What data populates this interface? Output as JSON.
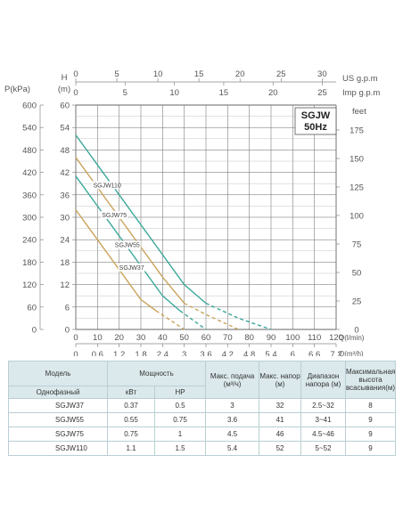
{
  "chart_data": {
    "type": "line",
    "model_label": "SGJW",
    "freq_label": "50Hz",
    "axes": {
      "left_kpa": {
        "label": "P(kPa)",
        "ticks": [
          "600",
          "540",
          "480",
          "420",
          "360",
          "300",
          "240",
          "180",
          "120",
          "60",
          "0"
        ]
      },
      "left_m": {
        "label_h": "H",
        "label_m": "(m)",
        "ticks": [
          "60",
          "54",
          "48",
          "42",
          "36",
          "30",
          "24",
          "18",
          "12",
          "6",
          "0"
        ]
      },
      "right_feet": {
        "label": "feet",
        "ticks": [
          "175",
          "150",
          "125",
          "100",
          "75",
          "50",
          "25",
          "0"
        ]
      },
      "top_us": {
        "label": "US g.p.m",
        "ticks": [
          "0",
          "5",
          "10",
          "15",
          "20",
          "25",
          "30"
        ]
      },
      "top_imp": {
        "label": "Imp g.p.m",
        "ticks": [
          "0",
          "5",
          "10",
          "15",
          "20",
          "25"
        ]
      },
      "bottom_lmin": {
        "label": "Q(l/min)",
        "ticks": [
          "0",
          "10",
          "20",
          "30",
          "40",
          "50",
          "60",
          "70",
          "80",
          "90",
          "100",
          "110",
          "120"
        ]
      },
      "bottom_m3h": {
        "label": "Q(m³/h)",
        "ticks": [
          "0",
          "0.6",
          "1.2",
          "1.8",
          "2.4",
          "3",
          "3.6",
          "4.2",
          "4.8",
          "5.4",
          "6",
          "6.6",
          "7.2"
        ]
      }
    },
    "xlim": [
      0,
      120
    ],
    "ylim": [
      0,
      60
    ],
    "series": [
      {
        "name": "SGJW110",
        "color": "#3aa89a",
        "points": [
          [
            0,
            52
          ],
          [
            5,
            48
          ],
          [
            10,
            44
          ],
          [
            20,
            36
          ],
          [
            30,
            28
          ],
          [
            40,
            20
          ],
          [
            50,
            12
          ],
          [
            60,
            7
          ]
        ],
        "dashed_points": [
          [
            60,
            7
          ],
          [
            75,
            3
          ],
          [
            90,
            0
          ]
        ]
      },
      {
        "name": "SGJW75",
        "color": "#c9a35a",
        "points": [
          [
            0,
            46
          ],
          [
            10,
            38
          ],
          [
            20,
            30
          ],
          [
            30,
            22
          ],
          [
            40,
            14
          ],
          [
            50,
            7
          ]
        ],
        "dashed_points": [
          [
            50,
            7
          ],
          [
            60,
            4
          ],
          [
            75,
            0
          ]
        ]
      },
      {
        "name": "SGJW55",
        "color": "#3aa89a",
        "points": [
          [
            0,
            41
          ],
          [
            10,
            33
          ],
          [
            20,
            25
          ],
          [
            30,
            17
          ],
          [
            40,
            9
          ],
          [
            48,
            5
          ]
        ],
        "dashed_points": [
          [
            48,
            5
          ],
          [
            60,
            0
          ]
        ]
      },
      {
        "name": "SGJW37",
        "color": "#c9a35a",
        "points": [
          [
            0,
            32
          ],
          [
            10,
            24
          ],
          [
            20,
            16
          ],
          [
            30,
            8
          ],
          [
            37,
            5
          ]
        ],
        "dashed_points": [
          [
            37,
            5
          ],
          [
            50,
            0
          ]
        ]
      }
    ]
  },
  "table": {
    "col_model": "Модель",
    "col_power": "Мощность",
    "col_flow": "Макс. подача (м³/ч)",
    "col_head": "Макс. напор (м)",
    "col_range": "Диапазон напора (м)",
    "col_suction": "Максимальная высота всасывания(м)",
    "sub_phase": "Однофазный",
    "sub_kw": "кВт",
    "sub_hp": "HP",
    "rows": [
      {
        "model": "SGJW37",
        "kw": "0.37",
        "hp": "0.5",
        "flow": "3",
        "head": "32",
        "range": "2.5~32",
        "suction": "8"
      },
      {
        "model": "SGJW55",
        "kw": "0.55",
        "hp": "0.75",
        "flow": "3.6",
        "head": "41",
        "range": "3~41",
        "suction": "9"
      },
      {
        "model": "SGJW75",
        "kw": "0.75",
        "hp": "1",
        "flow": "4.5",
        "head": "46",
        "range": "4.5~46",
        "suction": "9"
      },
      {
        "model": "SGJW110",
        "kw": "1.1",
        "hp": "1.5",
        "flow": "5.4",
        "head": "52",
        "range": "5~52",
        "suction": "9"
      }
    ]
  }
}
